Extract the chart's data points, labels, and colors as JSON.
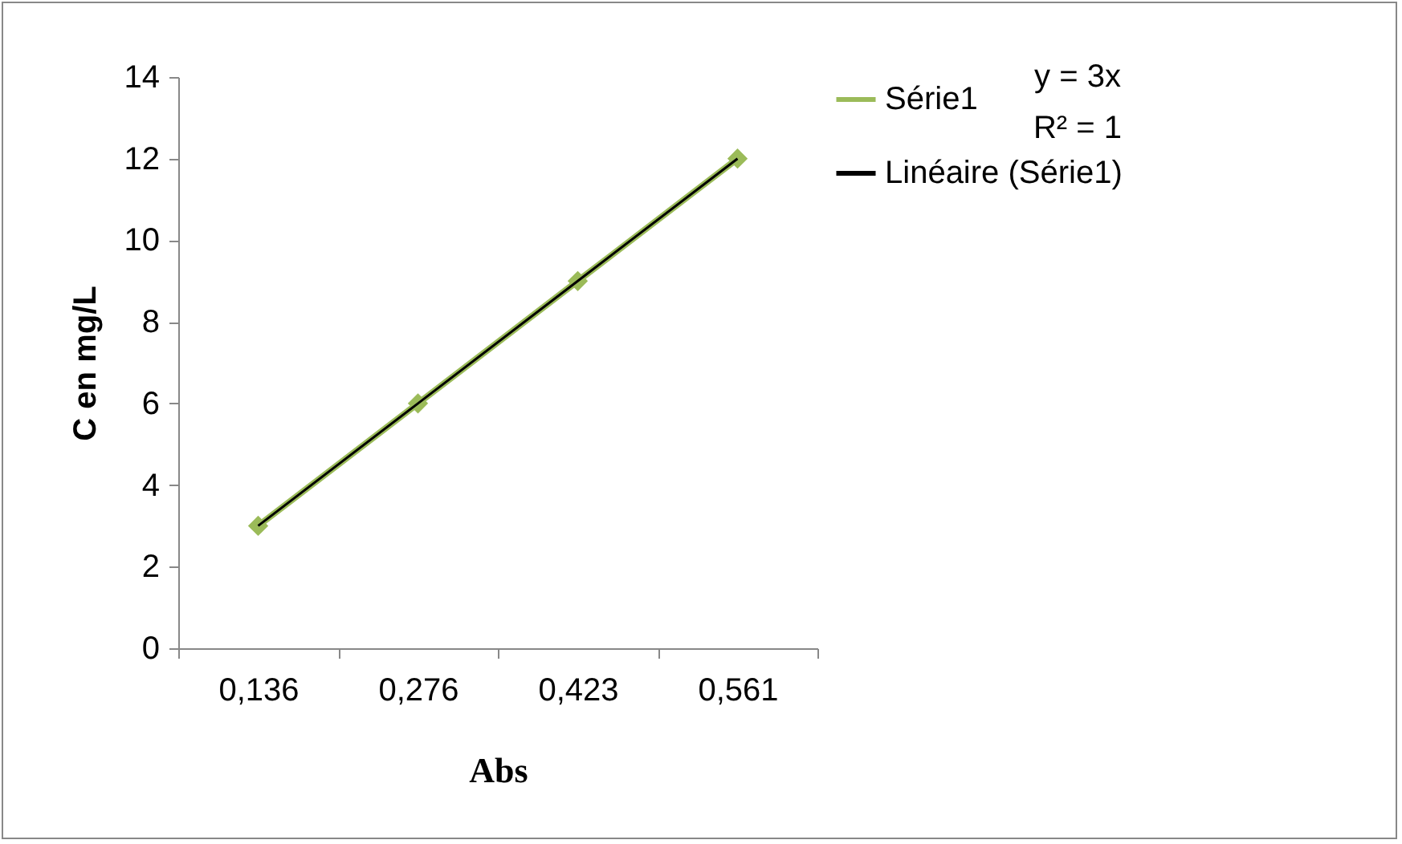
{
  "chart_data": {
    "type": "line",
    "xlabel": "Abs",
    "ylabel": "C en mg/L",
    "categories": [
      "0,136",
      "0,276",
      "0,423",
      "0,561"
    ],
    "series": [
      {
        "name": "Série1",
        "color": "#9bbb59",
        "values": [
          3,
          6,
          9,
          12
        ],
        "marker": "diamond"
      },
      {
        "name": "Linéaire (Série1)",
        "color": "#000000",
        "values": [
          3,
          6,
          9,
          12
        ],
        "marker": "none"
      }
    ],
    "ylim": [
      0,
      14
    ],
    "yticks": [
      0,
      2,
      4,
      6,
      8,
      10,
      12,
      14
    ],
    "grid": false,
    "legend": "right",
    "annotations": [
      "y = 3x",
      "R² = 1"
    ]
  }
}
